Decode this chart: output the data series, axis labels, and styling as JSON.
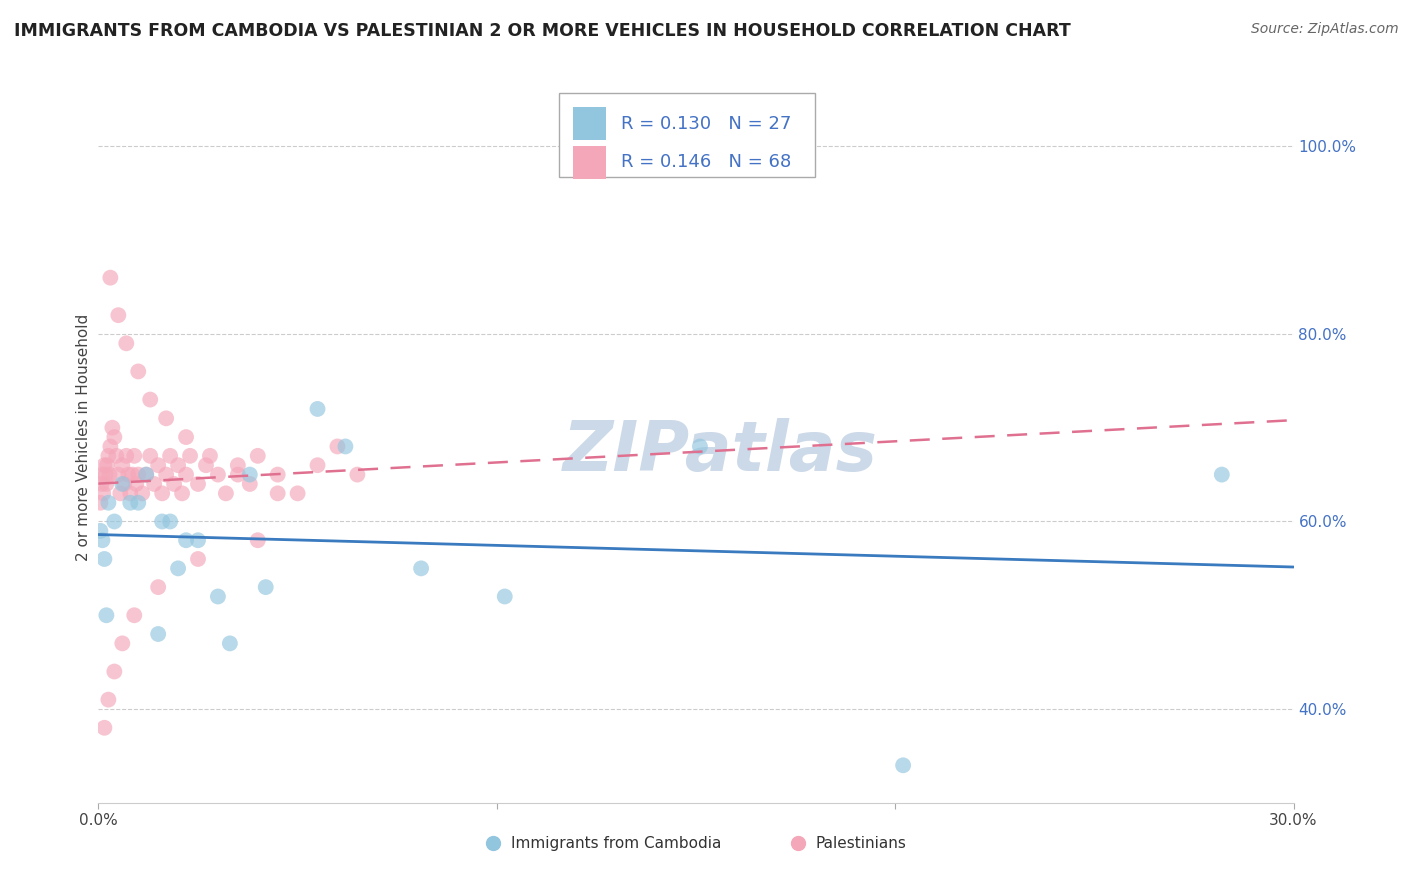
{
  "title": "IMMIGRANTS FROM CAMBODIA VS PALESTINIAN 2 OR MORE VEHICLES IN HOUSEHOLD CORRELATION CHART",
  "source": "Source: ZipAtlas.com",
  "ylabel": "2 or more Vehicles in Household",
  "xlim": [
    0.0,
    30.0
  ],
  "ylim": [
    30.0,
    108.0
  ],
  "ytick_vals": [
    40.0,
    60.0,
    80.0,
    100.0
  ],
  "xtick_vals": [
    0.0,
    10.0,
    20.0,
    30.0
  ],
  "xtick_labels": [
    "0.0%",
    "",
    "",
    "30.0%"
  ],
  "legend_color_blue": "#92c5de",
  "legend_color_pink": "#f4a7b9",
  "scatter_color_blue": "#92c5de",
  "scatter_color_pink": "#f4a7b9",
  "trend_color_blue": "#3a7abf",
  "trend_color_pink": "#e07090",
  "tick_label_color": "#4472c4",
  "watermark_color": "#ccd9e8",
  "R_cam": 0.13,
  "N_cam": 27,
  "R_pal": 0.146,
  "N_pal": 68,
  "cam_x": [
    0.05,
    0.1,
    0.15,
    0.2,
    0.25,
    0.4,
    0.6,
    0.8,
    1.0,
    1.2,
    1.5,
    1.8,
    2.0,
    2.5,
    3.0,
    3.3,
    3.8,
    4.2,
    5.5,
    6.2,
    8.1,
    10.2,
    15.1,
    20.2,
    28.2,
    1.6,
    2.2
  ],
  "cam_y": [
    59.0,
    58.0,
    56.0,
    50.0,
    62.0,
    60.0,
    64.0,
    62.0,
    62.0,
    65.0,
    48.0,
    60.0,
    55.0,
    58.0,
    52.0,
    47.0,
    65.0,
    53.0,
    72.0,
    68.0,
    55.0,
    52.0,
    68.0,
    34.0,
    65.0,
    60.0,
    58.0
  ],
  "pal_x": [
    0.05,
    0.08,
    0.1,
    0.12,
    0.15,
    0.18,
    0.2,
    0.22,
    0.25,
    0.28,
    0.3,
    0.35,
    0.4,
    0.45,
    0.5,
    0.55,
    0.6,
    0.65,
    0.7,
    0.75,
    0.8,
    0.85,
    0.9,
    0.95,
    1.0,
    1.1,
    1.2,
    1.3,
    1.4,
    1.5,
    1.6,
    1.7,
    1.8,
    1.9,
    2.0,
    2.1,
    2.2,
    2.3,
    2.5,
    2.7,
    3.0,
    3.2,
    3.5,
    3.8,
    4.0,
    4.5,
    5.0,
    5.5,
    6.0,
    6.5,
    0.3,
    0.5,
    0.7,
    1.0,
    1.3,
    1.7,
    2.2,
    2.8,
    3.5,
    4.5,
    0.15,
    0.25,
    0.4,
    0.6,
    0.9,
    1.5,
    2.5,
    4.0
  ],
  "pal_y": [
    62.0,
    64.0,
    65.0,
    63.0,
    66.0,
    65.0,
    64.0,
    66.0,
    67.0,
    65.0,
    68.0,
    70.0,
    69.0,
    67.0,
    65.0,
    63.0,
    66.0,
    64.0,
    67.0,
    65.0,
    63.0,
    65.0,
    67.0,
    64.0,
    65.0,
    63.0,
    65.0,
    67.0,
    64.0,
    66.0,
    63.0,
    65.0,
    67.0,
    64.0,
    66.0,
    63.0,
    65.0,
    67.0,
    64.0,
    66.0,
    65.0,
    63.0,
    66.0,
    64.0,
    67.0,
    65.0,
    63.0,
    66.0,
    68.0,
    65.0,
    86.0,
    82.0,
    79.0,
    76.0,
    73.0,
    71.0,
    69.0,
    67.0,
    65.0,
    63.0,
    38.0,
    41.0,
    44.0,
    47.0,
    50.0,
    53.0,
    56.0,
    58.0
  ]
}
